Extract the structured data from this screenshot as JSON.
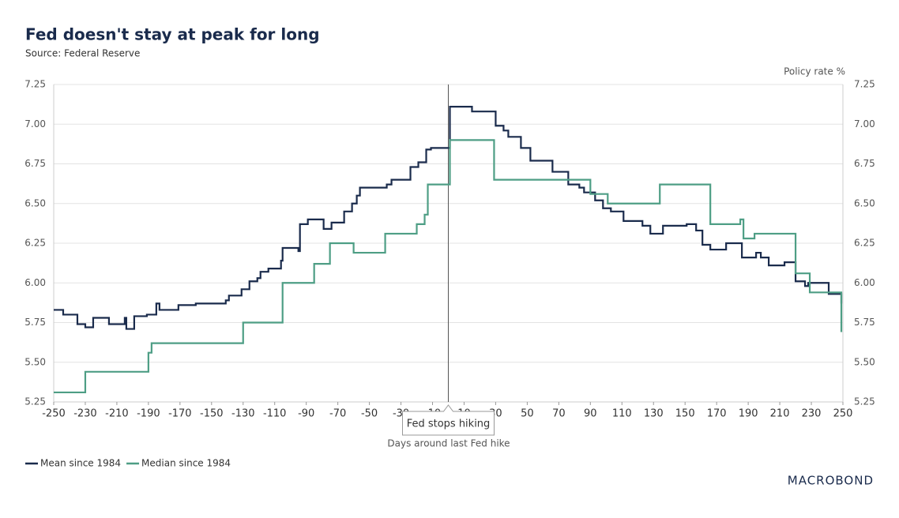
{
  "chart_data": {
    "type": "step-line",
    "title": "Fed doesn't stay at peak for long",
    "subtitle": "Source: Federal Reserve",
    "x_label": "Days around last Fed hike",
    "y2_label": "Policy rate %",
    "brand": "MACROBOND",
    "annotation": {
      "x": 0,
      "label": "Fed stops hiking"
    },
    "xlim": [
      -250,
      250
    ],
    "xticks": [
      -250,
      -230,
      -210,
      -190,
      -170,
      -150,
      -130,
      -110,
      -90,
      -70,
      -50,
      -30,
      -10,
      10,
      30,
      50,
      70,
      90,
      110,
      130,
      150,
      170,
      190,
      210,
      230,
      250
    ],
    "ylim": [
      5.25,
      7.25
    ],
    "yticks": [
      {
        "value": 5.25,
        "label": "5.25"
      },
      {
        "value": 5.5,
        "label": "5.50"
      },
      {
        "value": 5.75,
        "label": "5.75"
      },
      {
        "value": 6,
        "label": "6.00"
      },
      {
        "value": 6.25,
        "label": "6.25"
      },
      {
        "value": 6.5,
        "label": "6.50"
      },
      {
        "value": 6.75,
        "label": "6.75"
      },
      {
        "value": 7,
        "label": "7.00"
      },
      {
        "value": 7.25,
        "label": "7.25"
      }
    ],
    "y2lim": [
      5.25,
      7.25
    ],
    "y2ticks": [
      {
        "value": 5.25,
        "label": "5.25"
      },
      {
        "value": 5.5,
        "label": "5.50"
      },
      {
        "value": 5.75,
        "label": "5.75"
      },
      {
        "value": 6,
        "label": "6.00"
      },
      {
        "value": 6.25,
        "label": "6.25"
      },
      {
        "value": 6.5,
        "label": "6.50"
      },
      {
        "value": 6.75,
        "label": "6.75"
      },
      {
        "value": 7,
        "label": "7.00"
      },
      {
        "value": 7.25,
        "label": "7.25"
      }
    ],
    "grid": true,
    "legend": "bottom-left",
    "series": [
      {
        "name": "Mean since 1984",
        "color": "#1a2b4c",
        "x": [
          -250,
          -244,
          -235,
          -230,
          -225,
          -215,
          -205,
          -204,
          -199,
          -191,
          -185,
          -183,
          -171,
          -160,
          -141,
          -139,
          -131,
          -126,
          -121,
          -119,
          -114,
          -106,
          -105,
          -95,
          -94,
          -89,
          -79,
          -74,
          -66,
          -61,
          -58,
          -56,
          -39,
          -36,
          -24,
          -19,
          -14,
          -11,
          1,
          15,
          30,
          35,
          38,
          46,
          52,
          66,
          76,
          83,
          86,
          93,
          98,
          103,
          111,
          123,
          128,
          136,
          151,
          157,
          161,
          166,
          176,
          186,
          195,
          198,
          203,
          213,
          220,
          226,
          228,
          241,
          249
        ],
        "values": [
          5.83,
          5.8,
          5.74,
          5.72,
          5.78,
          5.74,
          5.78,
          5.71,
          5.79,
          5.8,
          5.87,
          5.83,
          5.86,
          5.87,
          5.89,
          5.92,
          5.96,
          6.01,
          6.03,
          6.07,
          6.09,
          6.14,
          6.22,
          6.2,
          6.37,
          6.4,
          6.34,
          6.38,
          6.45,
          6.5,
          6.55,
          6.6,
          6.62,
          6.65,
          6.73,
          6.76,
          6.84,
          6.85,
          7.11,
          7.08,
          6.99,
          6.96,
          6.92,
          6.85,
          6.77,
          6.7,
          6.62,
          6.6,
          6.57,
          6.52,
          6.47,
          6.45,
          6.39,
          6.36,
          6.31,
          6.36,
          6.37,
          6.33,
          6.24,
          6.21,
          6.25,
          6.16,
          6.19,
          6.16,
          6.11,
          6.13,
          6.01,
          5.98,
          6,
          5.93,
          5.87
        ]
      },
      {
        "name": "Median since 1984",
        "color": "#4e9e85",
        "x": [
          -250,
          -230,
          -190,
          -188,
          -130,
          -105,
          -85,
          -75,
          -60,
          -40,
          -20,
          -15,
          -13,
          1,
          29,
          90,
          101,
          134,
          166,
          185,
          187,
          194,
          220,
          229,
          249
        ],
        "values": [
          5.31,
          5.44,
          5.56,
          5.62,
          5.75,
          6,
          6.12,
          6.25,
          6.19,
          6.31,
          6.37,
          6.43,
          6.62,
          6.9,
          6.65,
          6.56,
          6.5,
          6.62,
          6.37,
          6.4,
          6.28,
          6.31,
          6.06,
          5.94,
          5.69
        ]
      }
    ]
  }
}
